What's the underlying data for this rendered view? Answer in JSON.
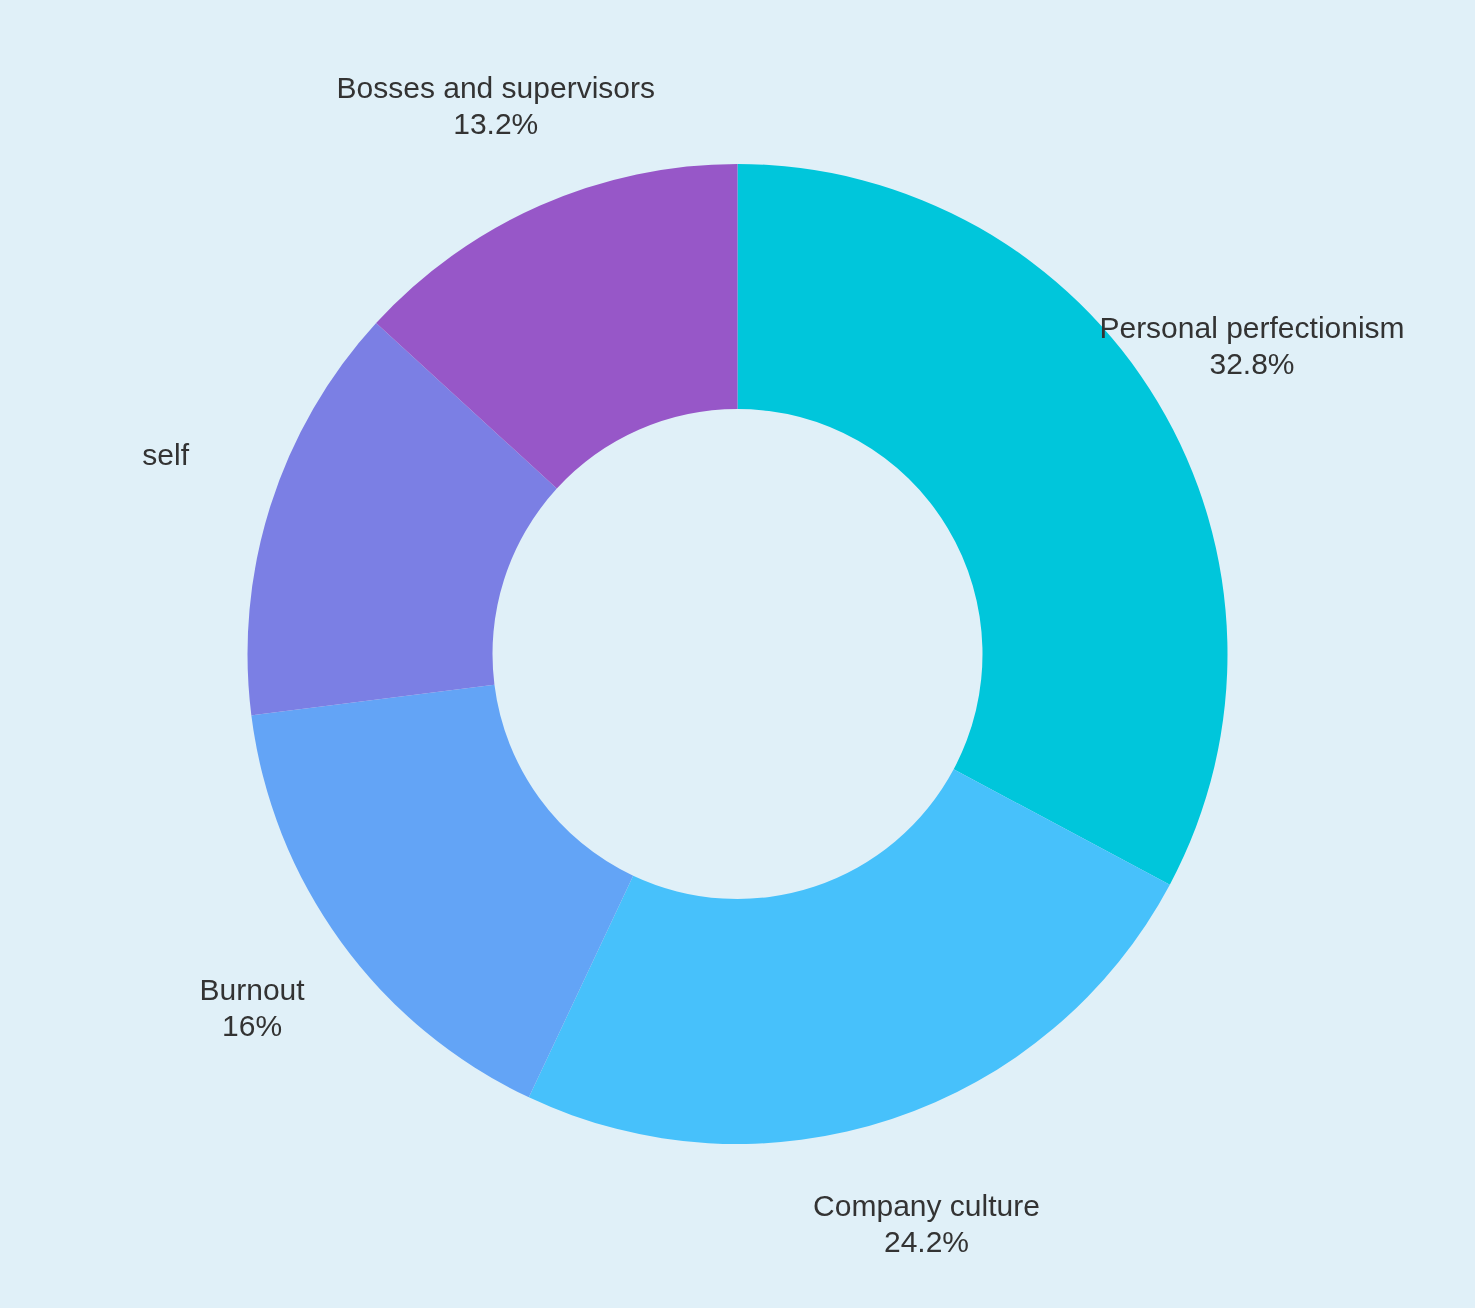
{
  "chart_data": {
    "type": "donut",
    "categories": [
      "Personal perfectionism",
      "Company culture",
      "Burnout",
      "self",
      "Bosses and supervisors"
    ],
    "values": [
      32.8,
      24.2,
      16,
      13.8,
      13.2
    ],
    "value_labels": [
      "32.8%",
      "24.2%",
      "16%",
      null,
      "13.2%"
    ],
    "colors": [
      "#00c6db",
      "#47c1fb",
      "#63a4f6",
      "#7b7fe4",
      "#9757c8"
    ],
    "legend": false
  }
}
